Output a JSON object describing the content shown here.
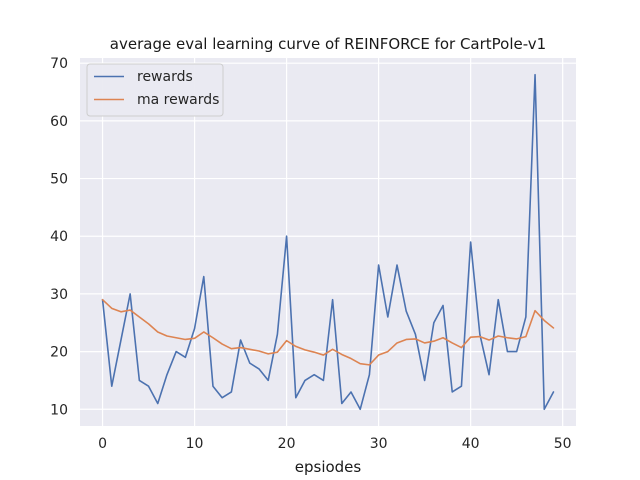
{
  "colors": {
    "plot_background": "#eaeaf2",
    "grid": "#ffffff",
    "rewards": "#4c72b0",
    "ma_rewards": "#dd8452"
  },
  "chart_data": {
    "type": "line",
    "title": "average eval learning curve of REINFORCE for CartPole-v1",
    "xlabel": "epsiodes",
    "ylabel": "",
    "xlim": [
      -2.45,
      51.45
    ],
    "ylim": [
      7.1,
      70.9
    ],
    "xticks": [
      "0",
      "10",
      "20",
      "30",
      "40",
      "50"
    ],
    "xtick_values": [
      0,
      10,
      20,
      30,
      40,
      50
    ],
    "yticks": [
      "10",
      "20",
      "30",
      "40",
      "50",
      "60",
      "70"
    ],
    "ytick_values": [
      10,
      20,
      30,
      40,
      50,
      60,
      70
    ],
    "grid": true,
    "legend_position": "upper-left",
    "x": [
      0,
      1,
      2,
      3,
      4,
      5,
      6,
      7,
      8,
      9,
      10,
      11,
      12,
      13,
      14,
      15,
      16,
      17,
      18,
      19,
      20,
      21,
      22,
      23,
      24,
      25,
      26,
      27,
      28,
      29,
      30,
      31,
      32,
      33,
      34,
      35,
      36,
      37,
      38,
      39,
      40,
      41,
      42,
      43,
      44,
      45,
      46,
      47,
      48,
      49
    ],
    "series": [
      {
        "name": "rewards",
        "color": "#4c72b0",
        "values": [
          29,
          14,
          22,
          30,
          15,
          14,
          11,
          16,
          20,
          19,
          24,
          33,
          14,
          12,
          13,
          22,
          18,
          17,
          15,
          23,
          40,
          12,
          15,
          16,
          15,
          29,
          11,
          13,
          10,
          16,
          35,
          26,
          35,
          27,
          23,
          15,
          25,
          28,
          13,
          14,
          39,
          23,
          16,
          29,
          20,
          20,
          26,
          68,
          10,
          13
        ]
      },
      {
        "name": "ma rewards",
        "color": "#dd8452",
        "values": [
          29,
          27.5,
          26.9,
          27.2,
          26,
          24.8,
          23.4,
          22.7,
          22.4,
          22.1,
          22.3,
          23.4,
          22.4,
          21.3,
          20.5,
          20.7,
          20.4,
          20.1,
          19.6,
          19.9,
          21.9,
          20.9,
          20.3,
          19.9,
          19.4,
          20.4,
          19.5,
          18.8,
          17.9,
          17.7,
          19.4,
          20,
          21.5,
          22.1,
          22.2,
          21.5,
          21.8,
          22.4,
          21.5,
          20.7,
          22.5,
          22.6,
          22,
          22.7,
          22.4,
          22.2,
          22.6,
          27.1,
          25.4,
          24.1
        ]
      }
    ]
  }
}
